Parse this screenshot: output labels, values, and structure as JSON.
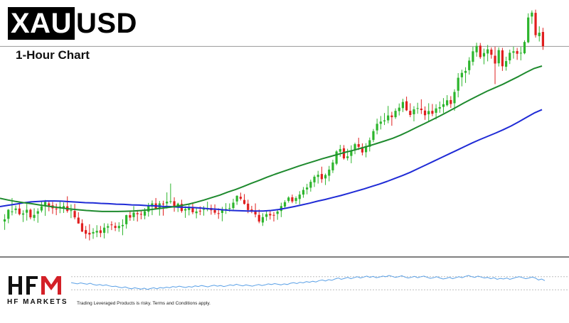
{
  "header": {
    "symbol_part1": "XAU",
    "symbol_part2": "USD",
    "timeframe": "1-Hour Chart"
  },
  "footer": {
    "brand_letters": "HFM",
    "brand_name": "HF MARKETS",
    "disclaimer": "Trading Leveraged Products is risky. Terms and Conditions apply."
  },
  "colors": {
    "bull": "#2db52d",
    "bear": "#e01f1f",
    "ma_fast": "#1e8a2e",
    "ma_slow": "#1f2bd6",
    "oscillator": "#5aa0e6",
    "brand_red": "#d32027"
  },
  "chart_data": {
    "type": "candlestick",
    "title": "XAUUSD 1-Hour Chart",
    "price_range": [
      0,
      100
    ],
    "highlight_level": 82.5,
    "candles": [
      {
        "o": 11.0,
        "h": 14.0,
        "l": 7.6,
        "c": 11.9
      },
      {
        "o": 12.1,
        "h": 16.1,
        "l": 10.3,
        "c": 15.8
      },
      {
        "o": 15.0,
        "h": 20.6,
        "l": 13.5,
        "c": 15.1
      },
      {
        "o": 15.7,
        "h": 17.5,
        "l": 14.2,
        "c": 16.3
      },
      {
        "o": 16.3,
        "h": 18.2,
        "l": 13.5,
        "c": 14.0
      },
      {
        "o": 13.8,
        "h": 15.6,
        "l": 10.8,
        "c": 14.3
      },
      {
        "o": 14.6,
        "h": 18.2,
        "l": 11.4,
        "c": 15.8
      },
      {
        "o": 15.8,
        "h": 16.3,
        "l": 11.9,
        "c": 12.7
      },
      {
        "o": 12.5,
        "h": 16.4,
        "l": 11.2,
        "c": 13.7
      },
      {
        "o": 14.2,
        "h": 16.4,
        "l": 10.5,
        "c": 15.2
      },
      {
        "o": 15.5,
        "h": 19.0,
        "l": 14.7,
        "c": 17.2
      },
      {
        "o": 17.7,
        "h": 19.8,
        "l": 13.3,
        "c": 19.0
      },
      {
        "o": 18.4,
        "h": 19.5,
        "l": 15.2,
        "c": 17.4
      },
      {
        "o": 17.6,
        "h": 19.0,
        "l": 14.1,
        "c": 16.4
      },
      {
        "o": 16.3,
        "h": 18.3,
        "l": 13.6,
        "c": 16.0
      },
      {
        "o": 16.6,
        "h": 19.6,
        "l": 14.4,
        "c": 17.1
      },
      {
        "o": 16.5,
        "h": 18.8,
        "l": 14.5,
        "c": 17.3
      },
      {
        "o": 17.2,
        "h": 21.3,
        "l": 14.6,
        "c": 15.3
      },
      {
        "o": 15.3,
        "h": 18.0,
        "l": 12.4,
        "c": 15.6
      },
      {
        "o": 15.3,
        "h": 18.2,
        "l": 11.9,
        "c": 12.7
      },
      {
        "o": 12.6,
        "h": 14.8,
        "l": 10.1,
        "c": 10.2
      },
      {
        "o": 10.3,
        "h": 11.9,
        "l": 6.7,
        "c": 6.9
      },
      {
        "o": 7.5,
        "h": 9.2,
        "l": 4.0,
        "c": 6.0
      },
      {
        "o": 6.4,
        "h": 9.9,
        "l": 3.3,
        "c": 5.7
      },
      {
        "o": 6.1,
        "h": 8.3,
        "l": 3.9,
        "c": 6.7
      },
      {
        "o": 6.5,
        "h": 9.5,
        "l": 4.6,
        "c": 7.2
      },
      {
        "o": 7.4,
        "h": 9.2,
        "l": 4.6,
        "c": 6.3
      },
      {
        "o": 6.4,
        "h": 10.3,
        "l": 4.1,
        "c": 8.5
      },
      {
        "o": 8.5,
        "h": 10.2,
        "l": 6.2,
        "c": 9.1
      },
      {
        "o": 9.8,
        "h": 11.1,
        "l": 7.5,
        "c": 9.7
      },
      {
        "o": 9.2,
        "h": 10.6,
        "l": 7.1,
        "c": 8.4
      },
      {
        "o": 8.3,
        "h": 10.7,
        "l": 6.8,
        "c": 9.2
      },
      {
        "o": 9.1,
        "h": 11.9,
        "l": 5.4,
        "c": 9.6
      },
      {
        "o": 9.9,
        "h": 13.8,
        "l": 8.1,
        "c": 13.6
      },
      {
        "o": 13.6,
        "h": 15.3,
        "l": 11.3,
        "c": 12.6
      },
      {
        "o": 12.8,
        "h": 17.3,
        "l": 11.3,
        "c": 14.6
      },
      {
        "o": 14.4,
        "h": 15.7,
        "l": 11.0,
        "c": 14.0
      },
      {
        "o": 14.1,
        "h": 15.6,
        "l": 11.9,
        "c": 13.8
      },
      {
        "o": 13.4,
        "h": 16.5,
        "l": 11.9,
        "c": 15.2
      },
      {
        "o": 15.0,
        "h": 18.6,
        "l": 13.0,
        "c": 17.3
      },
      {
        "o": 17.1,
        "h": 19.6,
        "l": 13.6,
        "c": 18.4
      },
      {
        "o": 18.4,
        "h": 20.6,
        "l": 15.9,
        "c": 16.1
      },
      {
        "o": 16.6,
        "h": 19.4,
        "l": 13.4,
        "c": 18.4
      },
      {
        "o": 18.3,
        "h": 19.5,
        "l": 13.4,
        "c": 18.2
      },
      {
        "o": 18.4,
        "h": 22.9,
        "l": 16.3,
        "c": 19.1
      },
      {
        "o": 19.2,
        "h": 26.5,
        "l": 18.3,
        "c": 19.3
      },
      {
        "o": 19.3,
        "h": 20.9,
        "l": 15.0,
        "c": 17.3
      },
      {
        "o": 17.1,
        "h": 18.7,
        "l": 14.9,
        "c": 18.3
      },
      {
        "o": 18.2,
        "h": 19.9,
        "l": 14.6,
        "c": 15.3
      },
      {
        "o": 15.5,
        "h": 17.2,
        "l": 12.5,
        "c": 16.1
      },
      {
        "o": 15.7,
        "h": 17.9,
        "l": 13.5,
        "c": 16.6
      },
      {
        "o": 16.6,
        "h": 18.3,
        "l": 14.0,
        "c": 14.8
      },
      {
        "o": 14.4,
        "h": 16.8,
        "l": 12.3,
        "c": 15.1
      },
      {
        "o": 15.4,
        "h": 17.2,
        "l": 13.6,
        "c": 15.3
      },
      {
        "o": 15.8,
        "h": 17.3,
        "l": 13.4,
        "c": 16.1
      },
      {
        "o": 16.2,
        "h": 19.1,
        "l": 15.2,
        "c": 16.2
      },
      {
        "o": 16.5,
        "h": 17.9,
        "l": 13.8,
        "c": 15.6
      },
      {
        "o": 15.7,
        "h": 18.0,
        "l": 13.8,
        "c": 14.6
      },
      {
        "o": 14.4,
        "h": 16.4,
        "l": 12.1,
        "c": 14.2
      },
      {
        "o": 14.5,
        "h": 17.0,
        "l": 11.1,
        "c": 16.0
      },
      {
        "o": 15.8,
        "h": 18.5,
        "l": 14.1,
        "c": 16.1
      },
      {
        "o": 16.3,
        "h": 18.4,
        "l": 15.0,
        "c": 16.5
      },
      {
        "o": 16.5,
        "h": 20.3,
        "l": 15.8,
        "c": 18.7
      },
      {
        "o": 19.2,
        "h": 21.7,
        "l": 17.8,
        "c": 21.5
      },
      {
        "o": 21.1,
        "h": 22.8,
        "l": 19.6,
        "c": 20.3
      },
      {
        "o": 19.8,
        "h": 22.2,
        "l": 17.9,
        "c": 18.2
      },
      {
        "o": 18.3,
        "h": 19.9,
        "l": 14.4,
        "c": 15.7
      },
      {
        "o": 15.9,
        "h": 17.4,
        "l": 14.4,
        "c": 15.4
      },
      {
        "o": 15.2,
        "h": 18.4,
        "l": 12.7,
        "c": 13.9
      },
      {
        "o": 13.7,
        "h": 15.9,
        "l": 10.3,
        "c": 11.0
      },
      {
        "o": 10.6,
        "h": 14.4,
        "l": 9.2,
        "c": 12.8
      },
      {
        "o": 12.9,
        "h": 15.4,
        "l": 11.3,
        "c": 14.0
      },
      {
        "o": 14.1,
        "h": 15.3,
        "l": 11.8,
        "c": 13.5
      },
      {
        "o": 13.7,
        "h": 14.9,
        "l": 11.0,
        "c": 13.6
      },
      {
        "o": 14.1,
        "h": 15.9,
        "l": 11.7,
        "c": 15.1
      },
      {
        "o": 15.3,
        "h": 18.7,
        "l": 12.8,
        "c": 17.3
      },
      {
        "o": 17.1,
        "h": 19.7,
        "l": 16.3,
        "c": 18.9
      },
      {
        "o": 19.4,
        "h": 21.3,
        "l": 18.7,
        "c": 20.8
      },
      {
        "o": 20.9,
        "h": 22.0,
        "l": 18.5,
        "c": 19.2
      },
      {
        "o": 19.4,
        "h": 21.3,
        "l": 18.2,
        "c": 20.6
      },
      {
        "o": 20.2,
        "h": 23.4,
        "l": 18.0,
        "c": 22.0
      },
      {
        "o": 22.0,
        "h": 25.1,
        "l": 20.7,
        "c": 23.9
      },
      {
        "o": 24.1,
        "h": 26.4,
        "l": 22.1,
        "c": 24.9
      },
      {
        "o": 24.8,
        "h": 28.1,
        "l": 23.2,
        "c": 27.2
      },
      {
        "o": 27.0,
        "h": 30.0,
        "l": 25.1,
        "c": 29.3
      },
      {
        "o": 29.2,
        "h": 31.7,
        "l": 26.5,
        "c": 30.1
      },
      {
        "o": 30.4,
        "h": 33.4,
        "l": 26.8,
        "c": 28.3
      },
      {
        "o": 28.6,
        "h": 30.6,
        "l": 25.9,
        "c": 30.0
      },
      {
        "o": 29.7,
        "h": 33.7,
        "l": 27.4,
        "c": 32.2
      },
      {
        "o": 31.9,
        "h": 36.2,
        "l": 30.8,
        "c": 35.1
      },
      {
        "o": 34.6,
        "h": 40.1,
        "l": 34.0,
        "c": 39.6
      },
      {
        "o": 39.5,
        "h": 42.3,
        "l": 37.5,
        "c": 40.6
      },
      {
        "o": 40.9,
        "h": 42.2,
        "l": 36.3,
        "c": 36.8
      },
      {
        "o": 36.9,
        "h": 40.7,
        "l": 35.9,
        "c": 37.6
      },
      {
        "o": 37.8,
        "h": 42.1,
        "l": 34.8,
        "c": 39.9
      },
      {
        "o": 40.4,
        "h": 43.2,
        "l": 38.5,
        "c": 42.6
      },
      {
        "o": 42.6,
        "h": 45.2,
        "l": 40.2,
        "c": 41.5
      },
      {
        "o": 41.4,
        "h": 42.9,
        "l": 38.0,
        "c": 39.2
      },
      {
        "o": 39.3,
        "h": 43.0,
        "l": 37.2,
        "c": 41.8
      },
      {
        "o": 41.5,
        "h": 45.3,
        "l": 39.6,
        "c": 44.2
      },
      {
        "o": 44.3,
        "h": 48.8,
        "l": 43.4,
        "c": 47.9
      },
      {
        "o": 48.2,
        "h": 53.0,
        "l": 46.6,
        "c": 50.9
      },
      {
        "o": 50.9,
        "h": 54.1,
        "l": 48.6,
        "c": 51.8
      },
      {
        "o": 51.9,
        "h": 55.3,
        "l": 50.4,
        "c": 52.3
      },
      {
        "o": 52.3,
        "h": 58.2,
        "l": 51.1,
        "c": 54.3
      },
      {
        "o": 54.3,
        "h": 55.8,
        "l": 50.1,
        "c": 53.6
      },
      {
        "o": 53.6,
        "h": 57.2,
        "l": 52.9,
        "c": 56.2
      },
      {
        "o": 56.1,
        "h": 59.2,
        "l": 54.3,
        "c": 57.5
      },
      {
        "o": 57.3,
        "h": 61.1,
        "l": 55.7,
        "c": 59.8
      },
      {
        "o": 60.1,
        "h": 62.0,
        "l": 56.1,
        "c": 56.4
      },
      {
        "o": 56.2,
        "h": 59.3,
        "l": 53.6,
        "c": 54.5
      },
      {
        "o": 54.8,
        "h": 58.1,
        "l": 51.9,
        "c": 56.8
      },
      {
        "o": 57.3,
        "h": 59.5,
        "l": 55.0,
        "c": 57.3
      },
      {
        "o": 57.1,
        "h": 60.9,
        "l": 54.9,
        "c": 56.5
      },
      {
        "o": 56.3,
        "h": 58.0,
        "l": 52.5,
        "c": 54.4
      },
      {
        "o": 54.8,
        "h": 59.3,
        "l": 51.9,
        "c": 56.1
      },
      {
        "o": 56.2,
        "h": 59.0,
        "l": 54.0,
        "c": 55.0
      },
      {
        "o": 55.4,
        "h": 58.9,
        "l": 52.7,
        "c": 57.2
      },
      {
        "o": 57.1,
        "h": 60.0,
        "l": 55.4,
        "c": 57.7
      },
      {
        "o": 57.8,
        "h": 61.4,
        "l": 55.3,
        "c": 58.9
      },
      {
        "o": 58.5,
        "h": 62.6,
        "l": 58.0,
        "c": 60.5
      },
      {
        "o": 60.6,
        "h": 62.2,
        "l": 57.4,
        "c": 59.0
      },
      {
        "o": 59.3,
        "h": 65.0,
        "l": 56.2,
        "c": 63.9
      },
      {
        "o": 64.4,
        "h": 71.6,
        "l": 61.7,
        "c": 69.7
      },
      {
        "o": 69.9,
        "h": 73.0,
        "l": 66.2,
        "c": 71.7
      },
      {
        "o": 71.7,
        "h": 74.0,
        "l": 67.6,
        "c": 72.5
      },
      {
        "o": 72.8,
        "h": 78.1,
        "l": 71.0,
        "c": 76.7
      },
      {
        "o": 76.2,
        "h": 82.4,
        "l": 74.7,
        "c": 80.5
      },
      {
        "o": 80.1,
        "h": 84.0,
        "l": 78.3,
        "c": 82.7
      },
      {
        "o": 82.8,
        "h": 83.9,
        "l": 77.4,
        "c": 78.1
      },
      {
        "o": 78.4,
        "h": 81.6,
        "l": 75.2,
        "c": 79.8
      },
      {
        "o": 79.6,
        "h": 83.1,
        "l": 76.4,
        "c": 81.3
      },
      {
        "o": 81.2,
        "h": 82.1,
        "l": 77.5,
        "c": 79.1
      },
      {
        "o": 78.7,
        "h": 82.4,
        "l": 67.1,
        "c": 75.5
      },
      {
        "o": 75.6,
        "h": 82.1,
        "l": 74.3,
        "c": 81.0
      },
      {
        "o": 80.9,
        "h": 81.9,
        "l": 72.5,
        "c": 74.4
      },
      {
        "o": 74.2,
        "h": 78.3,
        "l": 72.6,
        "c": 76.5
      },
      {
        "o": 76.8,
        "h": 81.2,
        "l": 75.3,
        "c": 79.9
      },
      {
        "o": 79.9,
        "h": 82.4,
        "l": 77.5,
        "c": 80.5
      },
      {
        "o": 80.6,
        "h": 81.9,
        "l": 77.0,
        "c": 79.5
      },
      {
        "o": 79.8,
        "h": 82.3,
        "l": 76.8,
        "c": 79.9
      },
      {
        "o": 79.7,
        "h": 85.0,
        "l": 79.3,
        "c": 84.3
      },
      {
        "o": 84.2,
        "h": 96.0,
        "l": 83.8,
        "c": 94.3
      },
      {
        "o": 94.7,
        "h": 97.2,
        "l": 91.7,
        "c": 96.3
      },
      {
        "o": 96.2,
        "h": 97.5,
        "l": 86.1,
        "c": 87.1
      },
      {
        "o": 86.7,
        "h": 90.7,
        "l": 84.5,
        "c": 88.1
      },
      {
        "o": 88.4,
        "h": 90.1,
        "l": 81.1,
        "c": 82.6
      }
    ],
    "ma_fast": [
      20.5,
      19.8,
      19.2,
      18.7,
      18.3,
      17.8,
      17.3,
      16.9,
      16.5,
      16.1,
      15.8,
      15.5,
      15.3,
      15.1,
      15.1,
      15.1,
      15.2,
      15.3,
      15.5,
      15.8,
      16.2,
      16.6,
      17.0,
      17.5,
      18.1,
      18.9,
      19.8,
      20.8,
      21.8,
      23.0,
      24.1,
      25.3,
      26.6,
      27.8,
      29.1,
      30.3,
      31.4,
      32.5,
      33.6,
      34.6,
      35.6,
      36.6,
      37.5,
      38.4,
      39.3,
      40.1,
      41.0,
      41.9,
      42.9,
      43.9,
      45.0,
      46.3,
      47.8,
      49.4,
      50.9,
      52.5,
      54.1,
      55.8,
      57.5,
      59.3,
      61.0,
      62.6,
      64.2,
      65.6,
      67.0,
      68.6,
      70.2,
      71.9,
      73.5,
      74.5
    ],
    "ma_slow": [
      17.1,
      17.6,
      18.1,
      18.6,
      19.0,
      19.2,
      19.4,
      19.4,
      19.3,
      19.1,
      18.9,
      18.7,
      18.6,
      18.4,
      18.3,
      18.1,
      18.0,
      17.8,
      17.7,
      17.5,
      17.4,
      17.2,
      17.1,
      16.9,
      16.8,
      16.7,
      16.5,
      16.2,
      16.0,
      15.7,
      15.5,
      15.4,
      15.3,
      15.3,
      15.3,
      15.5,
      15.9,
      16.5,
      17.1,
      17.8,
      18.5,
      19.3,
      20.0,
      20.8,
      21.6,
      22.5,
      23.4,
      24.3,
      25.3,
      26.3,
      27.4,
      28.6,
      29.8,
      31.1,
      32.6,
      34.1,
      35.6,
      37.1,
      38.6,
      40.1,
      41.6,
      43.1,
      44.5,
      45.8,
      47.1,
      48.5,
      50.0,
      51.7,
      53.5,
      55.3,
      56.7
    ],
    "oscillator": {
      "range": [
        0,
        100
      ],
      "levels": [
        30,
        70
      ],
      "values": [
        52,
        50,
        48,
        51,
        49,
        47,
        50,
        46,
        44,
        46,
        43,
        45,
        42,
        40,
        41,
        38,
        36,
        39,
        35,
        33,
        36,
        34,
        32,
        35,
        31,
        34,
        36,
        33,
        37,
        35,
        38,
        36,
        40,
        38,
        41,
        39,
        37,
        40,
        38,
        42,
        40,
        43,
        41,
        39,
        42,
        44,
        41,
        43,
        40,
        42,
        45,
        43,
        47,
        44,
        42,
        45,
        43,
        41,
        44,
        46,
        43,
        45,
        48,
        46,
        49,
        47,
        45,
        48,
        46,
        50,
        52,
        49,
        53,
        51,
        55,
        53,
        56,
        54,
        58,
        60,
        57,
        61,
        59,
        63,
        66,
        62,
        65,
        68,
        64,
        67,
        70,
        66,
        69,
        72,
        68,
        71,
        67,
        69,
        72,
        70,
        74,
        71,
        68,
        70,
        73,
        69,
        66,
        68,
        71,
        67,
        70,
        72,
        68,
        65,
        67,
        70,
        66,
        63,
        65,
        68,
        64,
        67,
        70,
        67,
        71,
        74,
        70,
        68,
        72,
        69,
        66,
        68,
        64,
        67,
        62,
        65,
        63,
        66,
        62,
        65,
        68,
        70,
        67,
        64,
        66,
        69,
        66,
        60,
        63,
        58
      ]
    }
  }
}
